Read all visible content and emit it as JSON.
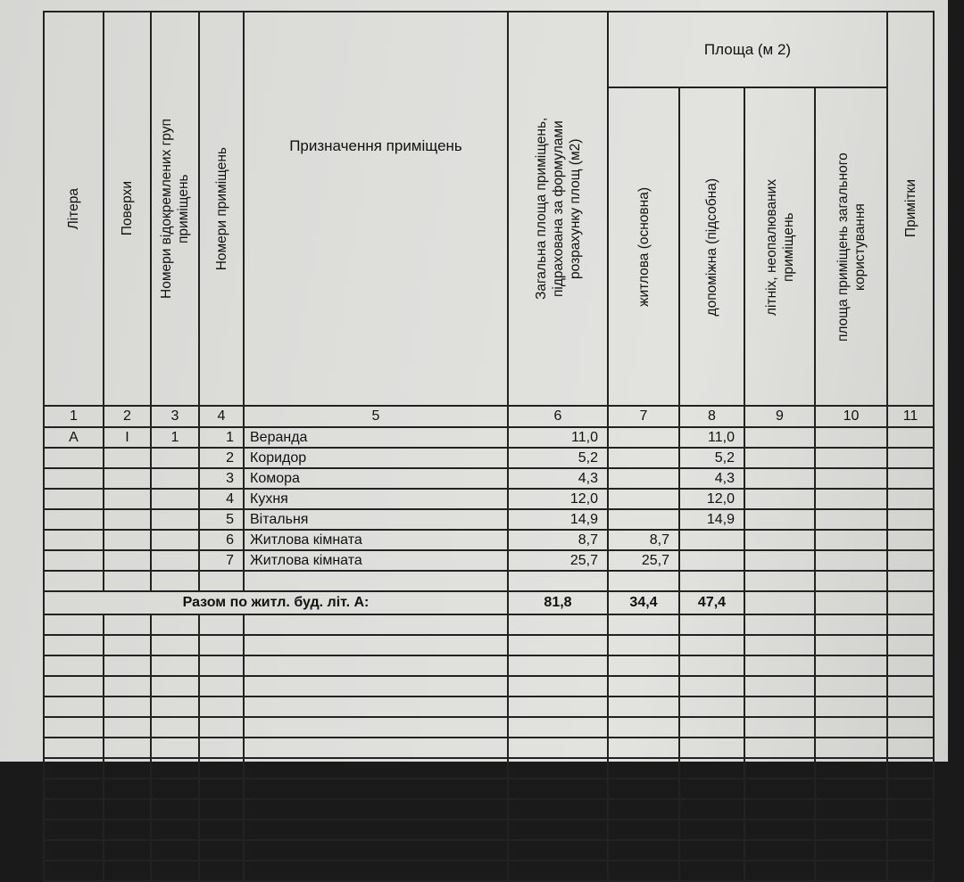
{
  "headers": {
    "litera": "Літера",
    "poverkhy": "Поверхи",
    "groups": "Номери відокремлених груп приміщень",
    "room_numbers": "Номери приміщень",
    "purpose": "Призначення приміщень",
    "total_area": "Загальна площа приміщень, підрахована за формулами розрахунку площ (м2)",
    "area_group": "Площа (м 2)",
    "living": "житлова (основна)",
    "auxiliary": "допоміжна (підсобна)",
    "summer": "літніх, неопалюваних приміщень",
    "common": "площа приміщень загального користування",
    "notes": "Примітки"
  },
  "column_numbers": [
    "1",
    "2",
    "3",
    "4",
    "5",
    "6",
    "7",
    "8",
    "9",
    "10",
    "11"
  ],
  "rows": [
    {
      "litera": "А",
      "floor": "І",
      "group": "1",
      "no": "1",
      "name": "Веранда",
      "total": "11,0",
      "living": "",
      "aux": "11,0"
    },
    {
      "litera": "",
      "floor": "",
      "group": "",
      "no": "2",
      "name": "Коридор",
      "total": "5,2",
      "living": "",
      "aux": "5,2"
    },
    {
      "litera": "",
      "floor": "",
      "group": "",
      "no": "3",
      "name": "Комора",
      "total": "4,3",
      "living": "",
      "aux": "4,3"
    },
    {
      "litera": "",
      "floor": "",
      "group": "",
      "no": "4",
      "name": "Кухня",
      "total": "12,0",
      "living": "",
      "aux": "12,0"
    },
    {
      "litera": "",
      "floor": "",
      "group": "",
      "no": "5",
      "name": "Вітальня",
      "total": "14,9",
      "living": "",
      "aux": "14,9"
    },
    {
      "litera": "",
      "floor": "",
      "group": "",
      "no": "6",
      "name": "Житлова кімната",
      "total": "8,7",
      "living": "8,7",
      "aux": ""
    },
    {
      "litera": "",
      "floor": "",
      "group": "",
      "no": "7",
      "name": "Житлова кімната",
      "total": "25,7",
      "living": "25,7",
      "aux": ""
    }
  ],
  "total": {
    "label": "Разом по житл. буд. літ. А:",
    "total": "81,8",
    "living": "34,4",
    "aux": "47,4"
  }
}
